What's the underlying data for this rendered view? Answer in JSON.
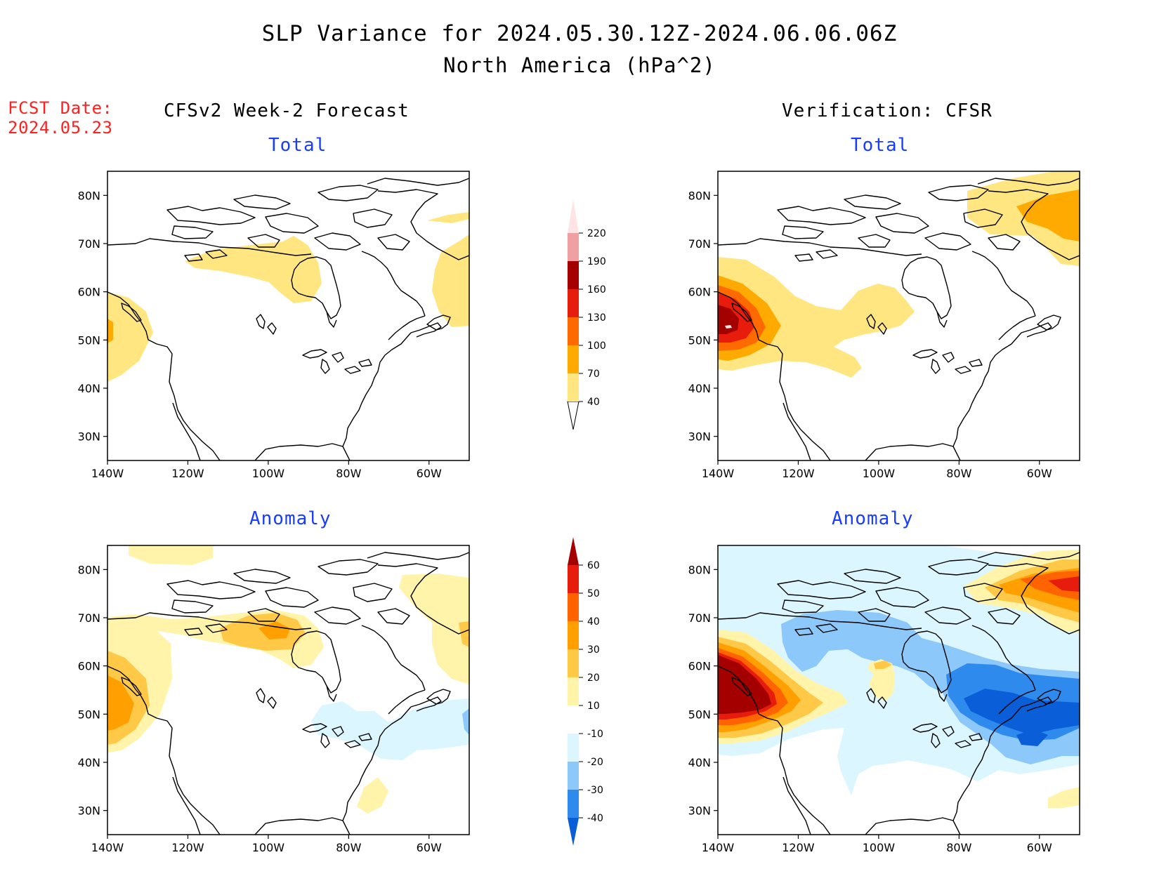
{
  "header": {
    "title": "SLP Variance for 2024.05.30.12Z-2024.06.06.06Z",
    "subtitle": "North America (hPa^2)",
    "fcst_label": "FCST Date:",
    "fcst_date": "2024.05.23"
  },
  "columns": {
    "left_title": "CFSv2 Week-2 Forecast",
    "right_title": "Verification: CFSR"
  },
  "panels": [
    {
      "id": "forecast-total",
      "title": "Total"
    },
    {
      "id": "verification-total",
      "title": "Total"
    },
    {
      "id": "forecast-anomaly",
      "title": "Anomaly"
    },
    {
      "id": "verification-anomaly",
      "title": "Anomaly"
    }
  ],
  "map_axes": {
    "lat_labels": [
      "80N",
      "70N",
      "60N",
      "50N",
      "40N",
      "30N"
    ],
    "lat_values": [
      80,
      70,
      60,
      50,
      40,
      30
    ],
    "lon_labels": [
      "140W",
      "120W",
      "100W",
      "80W",
      "60W"
    ],
    "lon_values": [
      -140,
      -120,
      -100,
      -80,
      -60
    ],
    "lon_range": [
      -140,
      -50
    ],
    "lat_range": [
      25,
      85
    ]
  },
  "colorbars": {
    "total": {
      "labels": [
        "40",
        "70",
        "100",
        "130",
        "160",
        "190",
        "220"
      ],
      "colors": [
        "#ffe680",
        "#ffaa00",
        "#ff6a00",
        "#e81c0c",
        "#a50000",
        "#f0a0a0",
        "#ffe4e4"
      ]
    },
    "anomaly": {
      "labels": [
        "-40",
        "-30",
        "-20",
        "-10",
        "10",
        "20",
        "30",
        "40",
        "50",
        "60"
      ],
      "colors": [
        "#0a5fd8",
        "#2f8aee",
        "#8cc8fa",
        "#dcf6ff",
        "#ffffff",
        "#fff4aa",
        "#ffc846",
        "#ffa000",
        "#ff6400",
        "#e81c0c",
        "#a50000"
      ]
    }
  },
  "colors": {
    "title_blue": "#1a3cff",
    "fcst_red": "#ff2020"
  }
}
